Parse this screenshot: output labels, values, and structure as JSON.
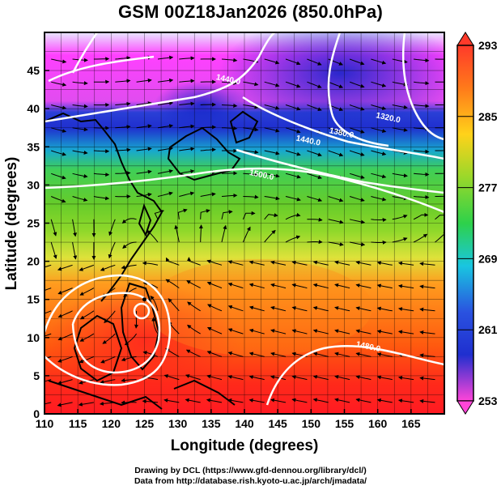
{
  "title": "GSM 00Z18Jan2026 (850.0hPa)",
  "xaxis": {
    "label": "Longitude (degrees)",
    "ticks": [
      110,
      115,
      120,
      125,
      130,
      135,
      140,
      145,
      150,
      155,
      160,
      165
    ],
    "range": [
      110,
      170
    ]
  },
  "yaxis": {
    "label": "Latitude  (degrees)",
    "ticks": [
      0,
      5,
      10,
      15,
      20,
      25,
      30,
      35,
      40,
      45
    ],
    "range": [
      0,
      50
    ]
  },
  "colorbar": {
    "ticks": [
      293,
      285,
      277,
      269,
      261,
      253
    ],
    "range": [
      253,
      293
    ]
  },
  "contours": [
    {
      "label": "1440.0",
      "lon": 137.5,
      "lat": 43.5
    },
    {
      "label": "1320.0",
      "lon": 161.5,
      "lat": 38.5
    },
    {
      "label": "1380.0",
      "lon": 154.5,
      "lat": 36.5
    },
    {
      "label": "1440.0",
      "lon": 149.5,
      "lat": 35.5
    },
    {
      "label": "1500.0",
      "lon": 142.5,
      "lat": 31.0
    },
    {
      "label": "1480.0",
      "lon": 158.5,
      "lat": 8.5
    }
  ],
  "cyclone_center": {
    "lon": 125,
    "lat": 15
  },
  "footer": {
    "line1": "Drawing by DCL (https://www.gfd-dennou.org/library/dcl/)",
    "line2": "Data from http://database.rish.kyoto-u.ac.jp/arch/jmadata/"
  },
  "colors": {
    "frame": "#000000",
    "contour": "#ffffff",
    "streamline": "#000000",
    "coast": "#000000"
  }
}
